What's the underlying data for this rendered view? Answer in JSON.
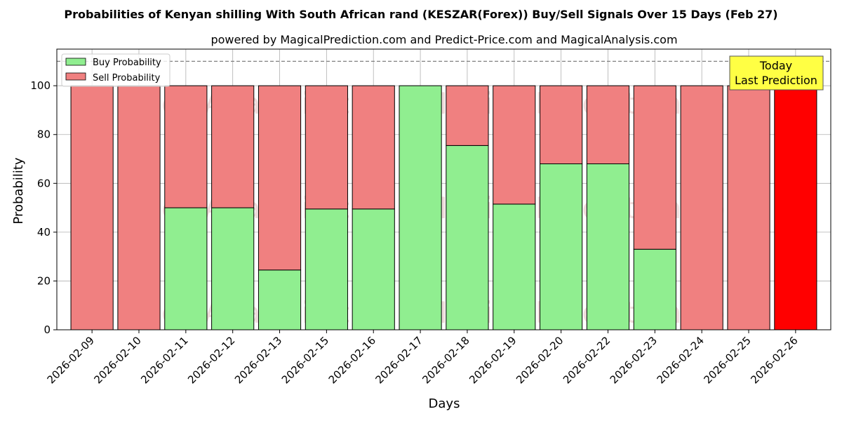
{
  "chart_data": {
    "type": "bar",
    "stacked": true,
    "title": "Probabilities of Kenyan shilling With South African rand (KESZAR(Forex)) Buy/Sell Signals Over 15 Days (Feb 27)",
    "subtitle": "powered by MagicalPrediction.com and Predict-Price.com and MagicalAnalysis.com",
    "xlabel": "Days",
    "ylabel": "Probability",
    "ylim": [
      0,
      115
    ],
    "yticks": [
      0,
      20,
      40,
      60,
      80,
      100
    ],
    "grid": true,
    "legend_position": "top-left",
    "threshold_line": 110,
    "categories": [
      "2026-02-09",
      "2026-02-10",
      "2026-02-11",
      "2026-02-12",
      "2026-02-13",
      "2026-02-15",
      "2026-02-16",
      "2026-02-17",
      "2026-02-18",
      "2026-02-19",
      "2026-02-20",
      "2026-02-22",
      "2026-02-23",
      "2026-02-24",
      "2026-02-25",
      "2026-02-26"
    ],
    "series": [
      {
        "name": "Buy Probability",
        "color": "#90ee90",
        "values": [
          0,
          0,
          50,
          50,
          24.5,
          49.5,
          49.5,
          100,
          75.5,
          51.5,
          68,
          68,
          33,
          0,
          0,
          0
        ]
      },
      {
        "name": "Sell Probability",
        "color": "#f08080",
        "values": [
          100,
          100,
          50,
          50,
          75.5,
          50.5,
          50.5,
          0,
          24.5,
          48.5,
          32,
          32,
          67,
          100,
          100,
          100
        ]
      }
    ],
    "highlight": {
      "category": "2026-02-26",
      "color": "#ff0000"
    },
    "annotation": {
      "line1": "Today",
      "line2": "Last Prediction",
      "color": "#ffff44"
    },
    "watermarks": [
      "MagicalAnalysis.com",
      "MagicalPrediction.com"
    ]
  }
}
